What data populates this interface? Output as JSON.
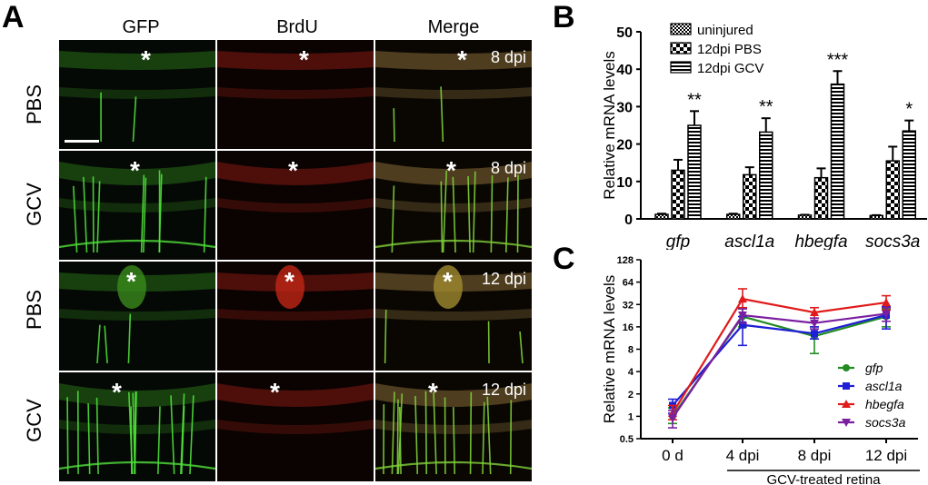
{
  "panel_a": {
    "letter": "A",
    "columns": [
      "GFP",
      "BrdU",
      "Merge"
    ],
    "rows": [
      {
        "label": "PBS",
        "time": "8 dpi",
        "star": "*"
      },
      {
        "label": "GCV",
        "time": "8 dpi",
        "star": "*"
      },
      {
        "label": "PBS",
        "time": "12 dpi",
        "star": "*"
      },
      {
        "label": "GCV",
        "time": "12 dpi",
        "star": "*"
      }
    ],
    "channel_colors": {
      "GFP": "#1f7a12",
      "BrdU": "#7a1410",
      "Merge": "#6e5a2a"
    }
  },
  "panel_b": {
    "letter": "B",
    "chart_data": {
      "type": "bar",
      "categories": [
        "gfp",
        "ascl1a",
        "hbegfa",
        "socs3a"
      ],
      "ylabel": "Relative mRNA levels",
      "ylim": [
        0,
        50
      ],
      "yticks": [
        0,
        10,
        20,
        30,
        40,
        50
      ],
      "series": [
        {
          "name": "uninjured",
          "pattern": "checker-fine",
          "values": [
            1.2,
            1.2,
            1.0,
            0.9
          ],
          "errors": [
            0.2,
            0.2,
            0.1,
            0.1
          ]
        },
        {
          "name": "12dpi PBS",
          "pattern": "checker-coarse",
          "values": [
            13,
            11.8,
            11,
            15.5
          ],
          "errors": [
            2.8,
            2,
            2.5,
            3.8
          ]
        },
        {
          "name": "12dpi GCV",
          "pattern": "horizontal-stripes",
          "values": [
            25,
            23.2,
            36,
            23.5
          ],
          "errors": [
            3.8,
            3.7,
            3.5,
            2.8
          ]
        }
      ],
      "annotations": [
        "**",
        "**",
        "***",
        "*"
      ],
      "legend_position": "top-left"
    }
  },
  "panel_c": {
    "letter": "C",
    "chart_data": {
      "type": "line",
      "categories": [
        "0 d",
        "4 dpi",
        "8 dpi",
        "12 dpi"
      ],
      "ylabel": "Relative mRNA levels",
      "xlabel": "GCV-treated retina",
      "yscale": "log2",
      "ylim": [
        0.5,
        128
      ],
      "yticks": [
        "0.5",
        "1",
        "2",
        "4",
        "8",
        "16",
        "32",
        "64",
        "128"
      ],
      "series": [
        {
          "name": "gfp",
          "color": "#238b23",
          "marker": "circle",
          "values": [
            1.0,
            22,
            12,
            22
          ],
          "err_low": [
            0.8,
            16,
            7,
            16
          ],
          "err_high": [
            1.3,
            28,
            16,
            28
          ]
        },
        {
          "name": "ascl1a",
          "color": "#1f1fd6",
          "marker": "square",
          "values": [
            1.4,
            17,
            13,
            23
          ],
          "err_low": [
            1.1,
            9,
            11,
            15
          ],
          "err_high": [
            1.7,
            22,
            16,
            30
          ]
        },
        {
          "name": "hbegfa",
          "color": "#e01b1b",
          "marker": "triangle-up",
          "values": [
            1.1,
            38,
            25,
            34
          ],
          "err_low": [
            0.9,
            29,
            21,
            27
          ],
          "err_high": [
            1.4,
            52,
            29,
            42
          ]
        },
        {
          "name": "socs3a",
          "color": "#7a1fa0",
          "marker": "triangle-down",
          "values": [
            0.95,
            23,
            18,
            24
          ],
          "err_low": [
            0.7,
            18,
            15,
            19
          ],
          "err_high": [
            1.2,
            28,
            21,
            29
          ]
        }
      ],
      "legend_position": "bottom-right"
    }
  }
}
